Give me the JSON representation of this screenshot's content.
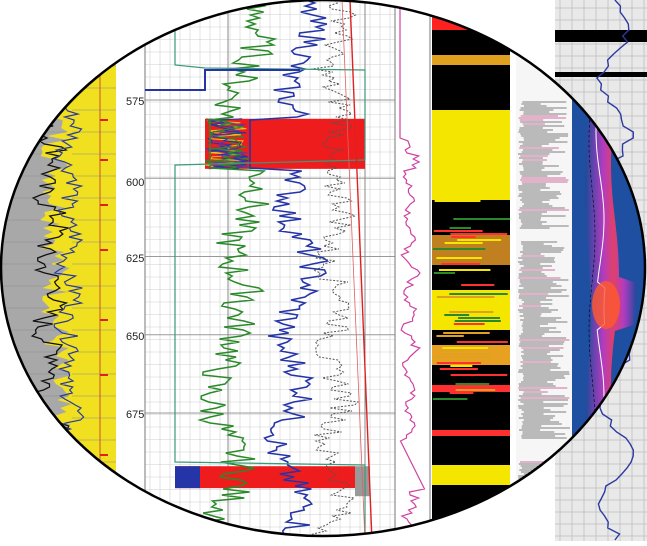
{
  "chart_data": {
    "type": "line",
    "title": "",
    "xlabel": "",
    "ylabel": "",
    "ylim": [
      562,
      708
    ],
    "depth_ticks": [
      "575",
      "600",
      "625",
      "650",
      "675"
    ],
    "depth_tick_values": [
      575,
      600,
      625,
      650,
      675
    ],
    "tracks": [
      {
        "id": "gamma-ray",
        "kind": "curve",
        "colors": [
          "#111111",
          "#2a3a9a",
          "#f0e020",
          "#9a9a9a"
        ]
      },
      {
        "id": "main-logs",
        "kind": "multi-curve",
        "series_colors": [
          "#2a8a2a",
          "#2535a8",
          "#555555",
          "#ff0000"
        ],
        "highlight_zones": [
          [
            581,
            597
          ],
          [
            692,
            699
          ]
        ]
      },
      {
        "id": "resistivity",
        "kind": "curve",
        "colors": [
          "#d040a0"
        ]
      },
      {
        "id": "lithology-image",
        "kind": "image",
        "colors": [
          "#000000",
          "#f5e600",
          "#ff3030",
          "#2a8a2a"
        ]
      },
      {
        "id": "seismic-wiggle",
        "kind": "image",
        "colors": [
          "#606060",
          "#ffffff",
          "#c04080"
        ]
      },
      {
        "id": "spectral-fan",
        "kind": "image",
        "colors": [
          "#1f4fa0",
          "#c040c0",
          "#ff4060"
        ]
      }
    ],
    "grid": true
  },
  "colors": {
    "background": "#ffffff",
    "gamma_fill": "#f0e020",
    "grid_major": "#9a9a9a",
    "grid_minor": "#d0d0d0",
    "red_zone": "#ee1c1c",
    "green_curve": "#2a8a2a",
    "blue_curve": "#2535a8"
  }
}
